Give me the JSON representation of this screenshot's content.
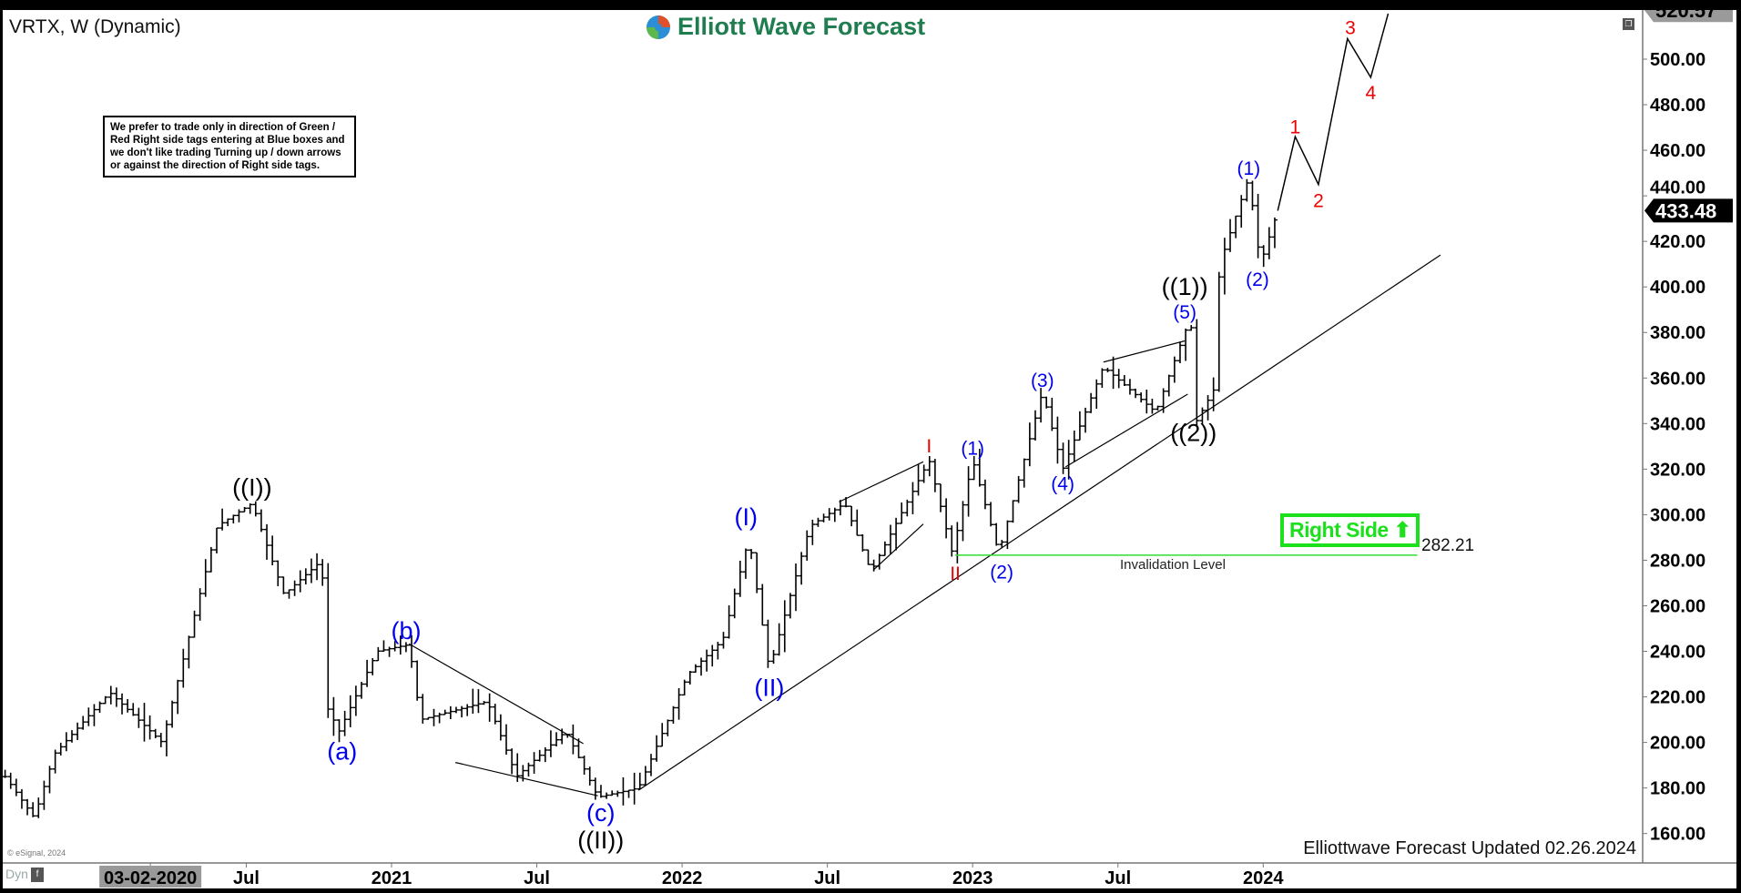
{
  "header": {
    "title": "VRTX, W (Dynamic)",
    "logo_text": "Elliott Wave Forecast"
  },
  "note": "We prefer to trade only in direction of Green / Red Right side tags entering at Blue boxes and we don't like trading Turning up / down arrows or against the direction of Right side tags.",
  "right_side_tag": {
    "label": "Right Side",
    "icon": "arrow-up-icon",
    "color": "#1be01b"
  },
  "invalidation": {
    "value": "282.21",
    "label": "Invalidation Level",
    "color": "#33dd33"
  },
  "footer": {
    "updated": "Elliottwave Forecast Updated 02.26.2024",
    "copyright": "© eSignal, 2024",
    "dyn": "Dyn"
  },
  "chart_data": {
    "type": "line",
    "symbol": "VRTX",
    "interval": "W",
    "ylim": [
      150,
      525
    ],
    "y_ticks": [
      "160.00",
      "180.00",
      "200.00",
      "220.00",
      "240.00",
      "260.00",
      "280.00",
      "300.00",
      "320.00",
      "340.00",
      "360.00",
      "380.00",
      "400.00",
      "420.00",
      "440.00",
      "460.00",
      "480.00",
      "500.00"
    ],
    "x_ticks": [
      {
        "label": "03-02-2020",
        "date": 2020.17,
        "highlight": true
      },
      {
        "label": "Jul",
        "date": 2020.5
      },
      {
        "label": "2021",
        "date": 2021.0
      },
      {
        "label": "Jul",
        "date": 2021.5
      },
      {
        "label": "2022",
        "date": 2022.0
      },
      {
        "label": "Jul",
        "date": 2022.5
      },
      {
        "label": "2023",
        "date": 2023.0
      },
      {
        "label": "Jul",
        "date": 2023.5
      },
      {
        "label": "2024",
        "date": 2024.0
      }
    ],
    "top_price": "520.57",
    "last_price": "433.48",
    "price_pivots": [
      [
        2019.67,
        185
      ],
      [
        2019.77,
        167
      ],
      [
        2019.84,
        195
      ],
      [
        2020.03,
        222
      ],
      [
        2020.21,
        200
      ],
      [
        2020.4,
        295
      ],
      [
        2020.52,
        305
      ],
      [
        2020.63,
        265
      ],
      [
        2020.76,
        280
      ],
      [
        2020.78,
        215
      ],
      [
        2020.82,
        205
      ],
      [
        2020.95,
        240
      ],
      [
        2021.06,
        243
      ],
      [
        2021.1,
        210
      ],
      [
        2021.33,
        218
      ],
      [
        2021.43,
        185
      ],
      [
        2021.6,
        205
      ],
      [
        2021.71,
        176
      ],
      [
        2021.85,
        180
      ],
      [
        2022.02,
        230
      ],
      [
        2022.14,
        245
      ],
      [
        2022.23,
        290
      ],
      [
        2022.3,
        232
      ],
      [
        2022.44,
        295
      ],
      [
        2022.56,
        305
      ],
      [
        2022.65,
        275
      ],
      [
        2022.85,
        324
      ],
      [
        2022.93,
        283
      ],
      [
        2023.0,
        324
      ],
      [
        2023.09,
        283
      ],
      [
        2023.24,
        354
      ],
      [
        2023.31,
        320
      ],
      [
        2023.45,
        365
      ],
      [
        2023.63,
        345
      ],
      [
        2023.75,
        387
      ],
      [
        2023.77,
        341
      ],
      [
        2023.83,
        355
      ],
      [
        2023.85,
        410
      ],
      [
        2023.95,
        448
      ],
      [
        2023.99,
        410
      ],
      [
        2024.05,
        433.48
      ]
    ],
    "projection": [
      [
        2024.05,
        433.48
      ],
      [
        2024.11,
        466
      ],
      [
        2024.19,
        445
      ],
      [
        2024.29,
        509
      ],
      [
        2024.37,
        492
      ],
      [
        2024.43,
        520
      ]
    ],
    "trendlines": [
      [
        [
          2021.85,
          179
        ],
        [
          2024.61,
          414
        ]
      ],
      [
        [
          2021.06,
          243.3
        ],
        [
          2021.66,
          199.5
        ]
      ],
      [
        [
          2021.22,
          191.2
        ],
        [
          2021.71,
          176.6
        ]
      ],
      [
        [
          2022.54,
          305.6
        ],
        [
          2022.83,
          323.2
        ]
      ],
      [
        [
          2022.66,
          275.9
        ],
        [
          2022.83,
          295.9
        ]
      ],
      [
        [
          2023.45,
          367
        ],
        [
          2023.73,
          376.3
        ]
      ],
      [
        [
          2023.32,
          321
        ],
        [
          2023.74,
          352.9
        ]
      ]
    ],
    "invalidation_line": [
      [
        2022.94,
        282.21
      ],
      [
        2024.53,
        282.21
      ]
    ],
    "wave_labels": [
      {
        "text": "((I))",
        "color": "#000000",
        "date": 2020.52,
        "price": 312
      },
      {
        "text": "(a)",
        "color": "#0000ee",
        "date": 2020.83,
        "price": 196
      },
      {
        "text": "(b)",
        "color": "#0000ee",
        "date": 2021.05,
        "price": 249
      },
      {
        "text": "(c)",
        "color": "#0000ee",
        "date": 2021.72,
        "price": 169
      },
      {
        "text": "((II))",
        "color": "#000000",
        "date": 2021.72,
        "price": 157
      },
      {
        "text": "(I)",
        "color": "#0000ee",
        "date": 2022.22,
        "price": 299
      },
      {
        "text": "(II)",
        "color": "#0000ee",
        "date": 2022.3,
        "price": 224
      },
      {
        "text": "I",
        "color": "#ee0000",
        "date": 2022.85,
        "price": 331
      },
      {
        "text": "II",
        "color": "#ee0000",
        "date": 2022.94,
        "price": 275
      },
      {
        "text": "(1)",
        "color": "#0000ee",
        "date": 2023.0,
        "price": 330
      },
      {
        "text": "(2)",
        "color": "#0000ee",
        "date": 2023.1,
        "price": 275.5
      },
      {
        "text": "(3)",
        "color": "#0000ee",
        "date": 2023.24,
        "price": 359.7
      },
      {
        "text": "(4)",
        "color": "#0000ee",
        "date": 2023.31,
        "price": 314.4
      },
      {
        "text": "((1))",
        "color": "#000000",
        "date": 2023.73,
        "price": 400
      },
      {
        "text": "(5)",
        "color": "#0000ee",
        "date": 2023.73,
        "price": 391
      },
      {
        "text": "((2))",
        "color": "#000000",
        "date": 2023.76,
        "price": 336
      },
      {
        "text": "(1)",
        "color": "#0000ee",
        "date": 2023.95,
        "price": 452.8
      },
      {
        "text": "(2)",
        "color": "#0000ee",
        "date": 2023.98,
        "price": 404
      },
      {
        "text": "1",
        "color": "#ee0000",
        "date": 2024.11,
        "price": 471
      },
      {
        "text": "2",
        "color": "#ee0000",
        "date": 2024.19,
        "price": 438.6
      },
      {
        "text": "3",
        "color": "#ee0000",
        "date": 2024.3,
        "price": 514.6
      },
      {
        "text": "4",
        "color": "#ee0000",
        "date": 2024.37,
        "price": 486
      }
    ]
  }
}
